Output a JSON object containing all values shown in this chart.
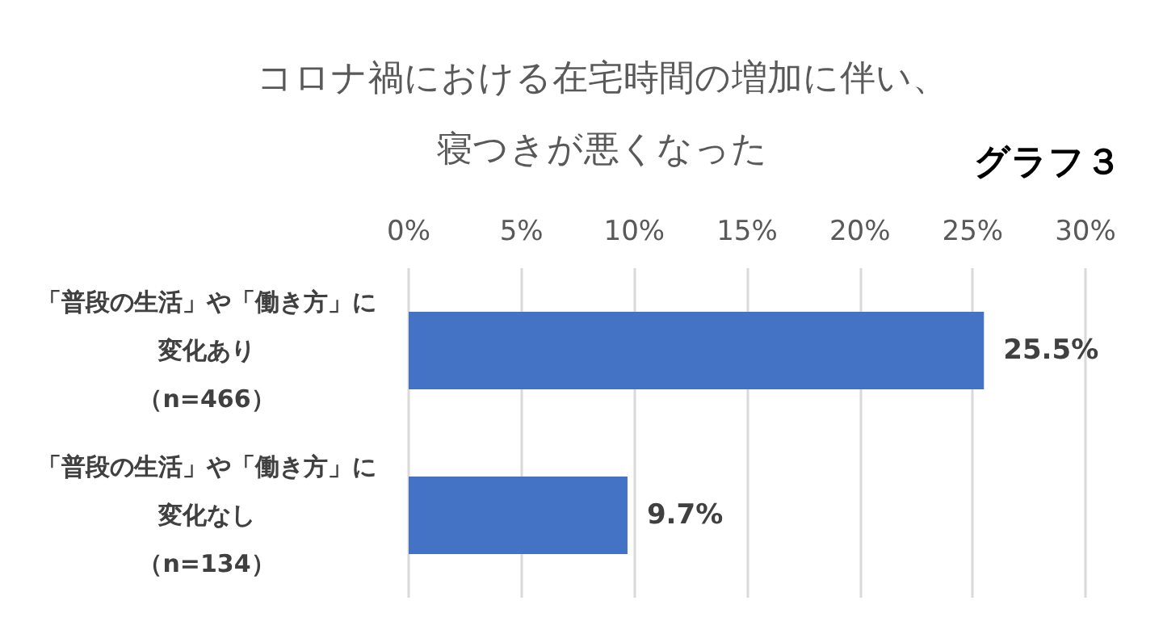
{
  "chart_data": {
    "type": "bar",
    "orientation": "horizontal",
    "title": "コロナ禍における在宅時間の増加に伴い、寝つきが悪くなった",
    "annotations": [
      "グラフ３"
    ],
    "categories": [
      "「普段の生活」や「働き方」に変化あり（n=466）",
      "「普段の生活」や「働き方」に変化なし（n=134）"
    ],
    "values": [
      25.5,
      9.7
    ],
    "value_labels": [
      "25.5%",
      "9.7%"
    ],
    "color": "#4472c4",
    "xlim": [
      0,
      30
    ],
    "xticks": [
      {
        "value": 0,
        "label": "0%"
      },
      {
        "value": 5,
        "label": "5%"
      },
      {
        "value": 10,
        "label": "10%"
      },
      {
        "value": 15,
        "label": "15%"
      },
      {
        "value": 20,
        "label": "20%"
      },
      {
        "value": 25,
        "label": "25%"
      },
      {
        "value": 30,
        "label": "30%"
      }
    ],
    "grid": "x"
  }
}
